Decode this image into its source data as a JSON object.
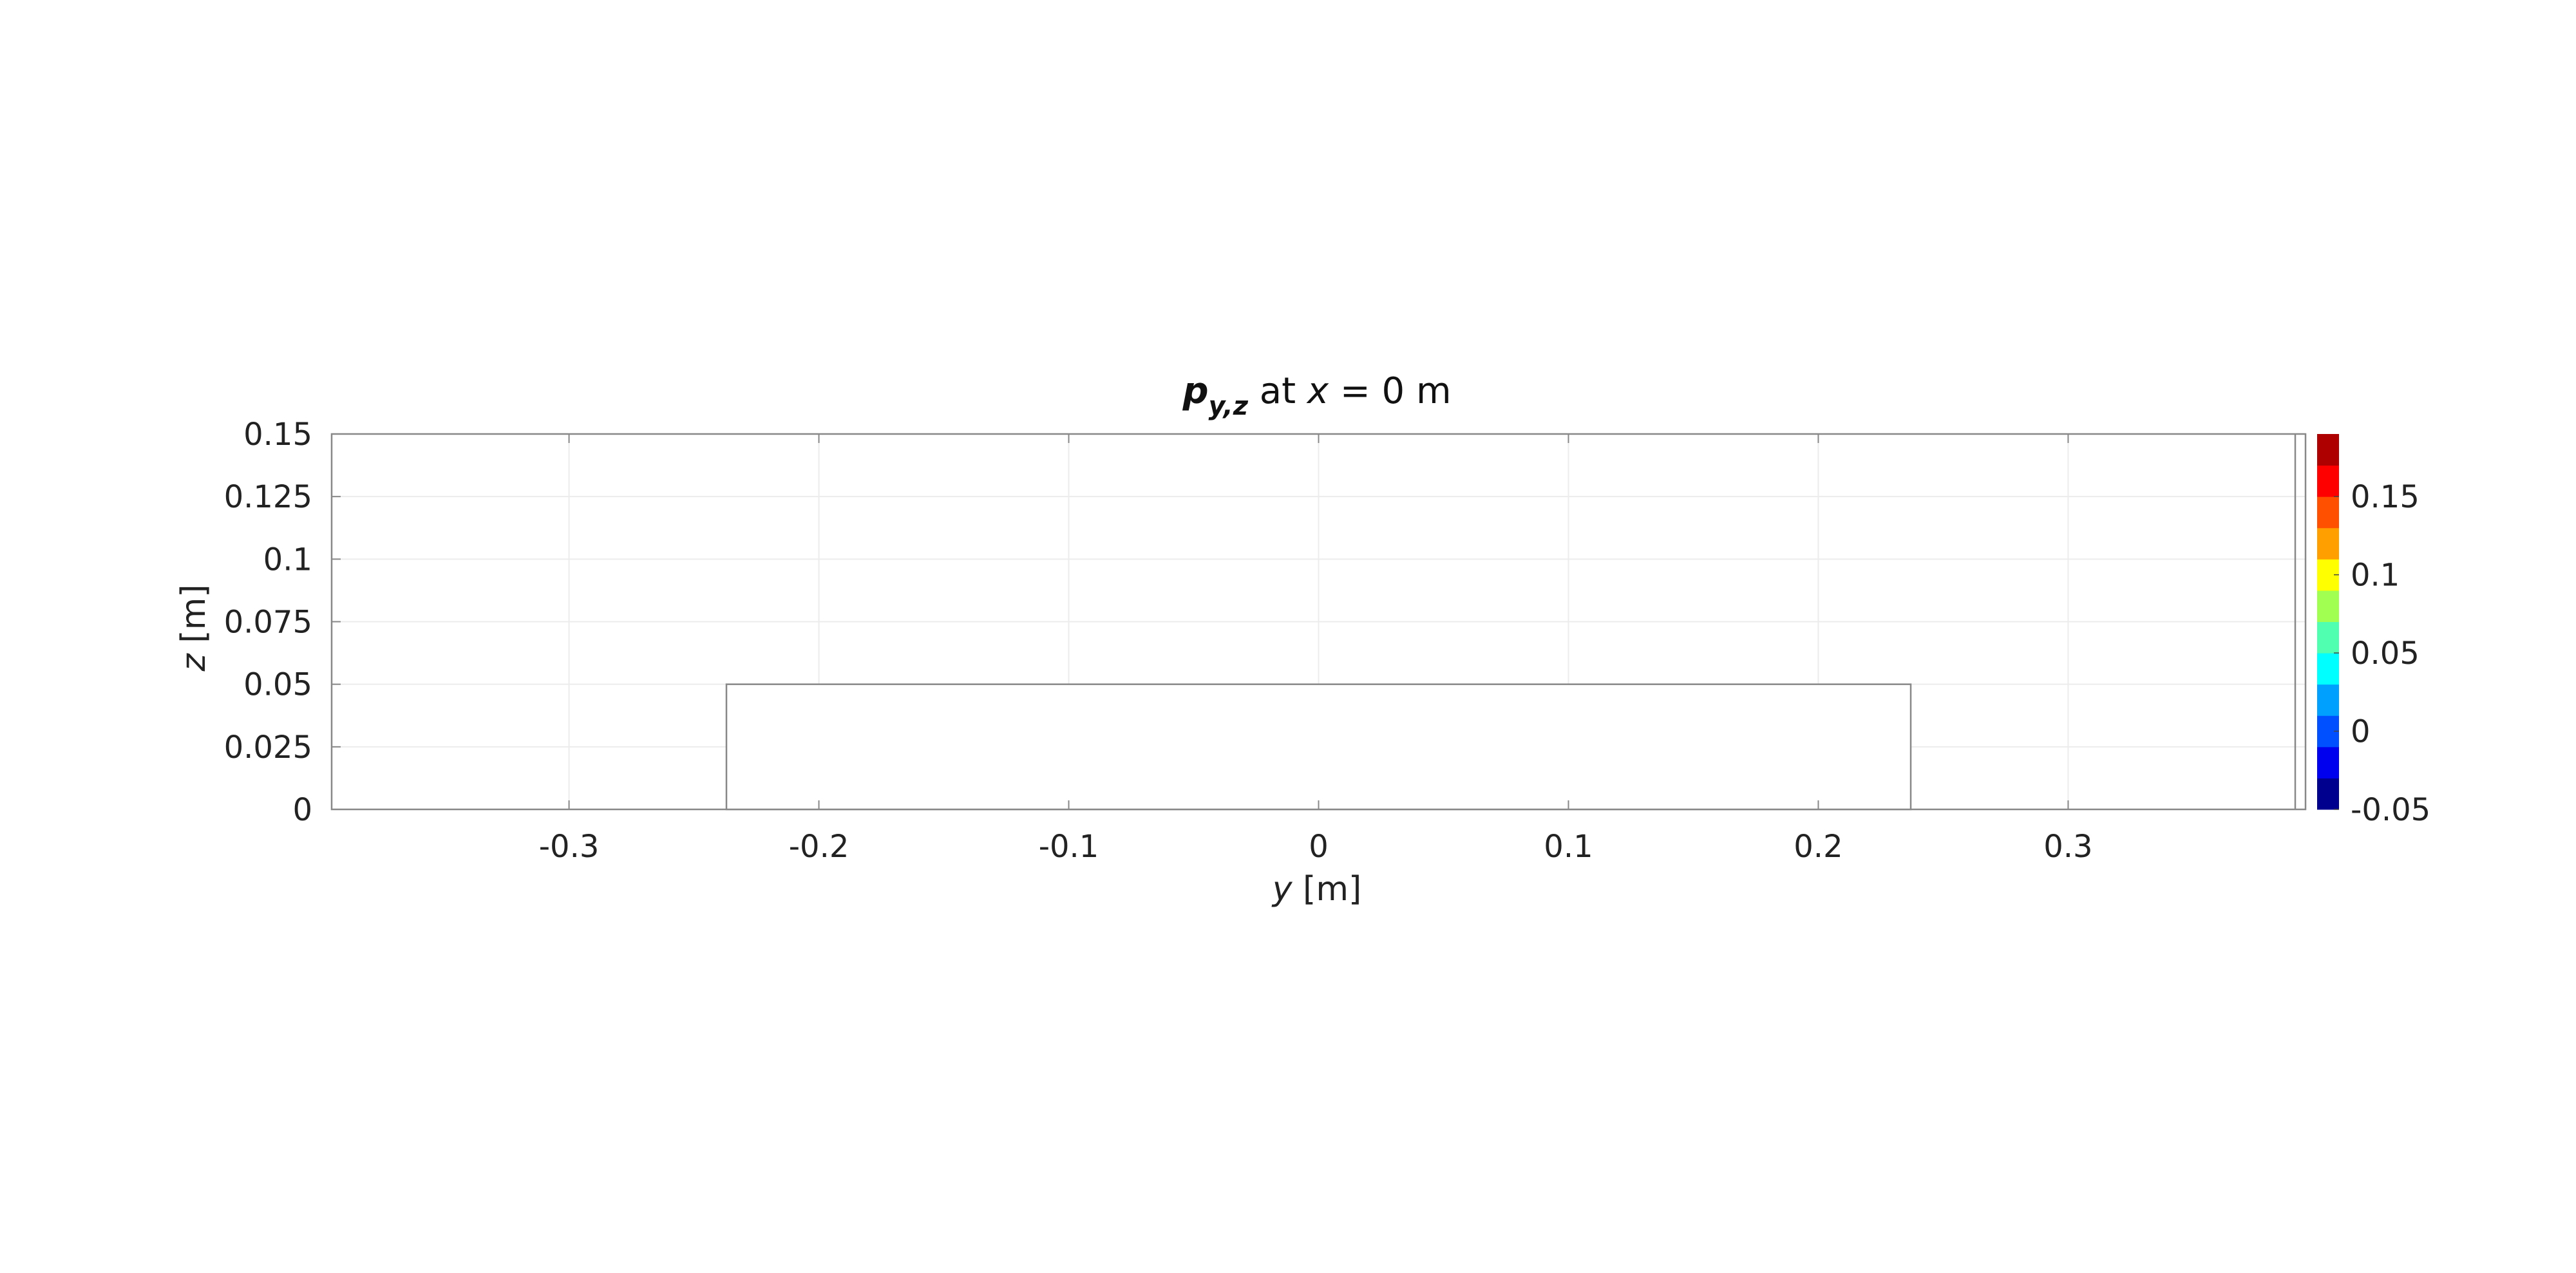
{
  "chart_data": {
    "type": "heatmap",
    "title": {
      "symbol": "p",
      "subscript": "y,z",
      "mid": " at ",
      "var": "x",
      "rest": " = 0 m"
    },
    "xlabel": {
      "var": "y",
      "unit": " [m]"
    },
    "ylabel": {
      "var": "z",
      "unit": " [m]"
    },
    "xlim": [
      -0.395,
      0.395
    ],
    "ylim": [
      0,
      0.15
    ],
    "x_ticks": [
      -0.3,
      -0.2,
      -0.1,
      0,
      0.1,
      0.2,
      0.3
    ],
    "x_tick_labels": [
      "-0.3",
      "-0.2",
      "-0.1",
      "0",
      "0.1",
      "0.2",
      "0.3"
    ],
    "y_ticks": [
      0,
      0.025,
      0.05,
      0.075,
      0.1,
      0.125,
      0.15
    ],
    "y_tick_labels": [
      "0",
      "0.025",
      "0.05",
      "0.075",
      "0.1",
      "0.125",
      "0.15"
    ],
    "grid": true,
    "region": {
      "y_min": -0.237,
      "y_max": 0.237,
      "z_min": 0,
      "z_max": 0.05
    },
    "colorbar": {
      "range": [
        -0.05,
        0.19
      ],
      "ticks": [
        -0.05,
        0,
        0.05,
        0.1,
        0.15
      ],
      "tick_labels": [
        "-0.05",
        "0",
        "0.05",
        "0.1",
        "0.15"
      ],
      "colors": [
        "#00008f",
        "#0000ef",
        "#0050ff",
        "#00a0ff",
        "#00ffff",
        "#50ffaf",
        "#a0ff50",
        "#ffff00",
        "#ffa000",
        "#ff5000",
        "#ff0000",
        "#af0000"
      ]
    }
  }
}
